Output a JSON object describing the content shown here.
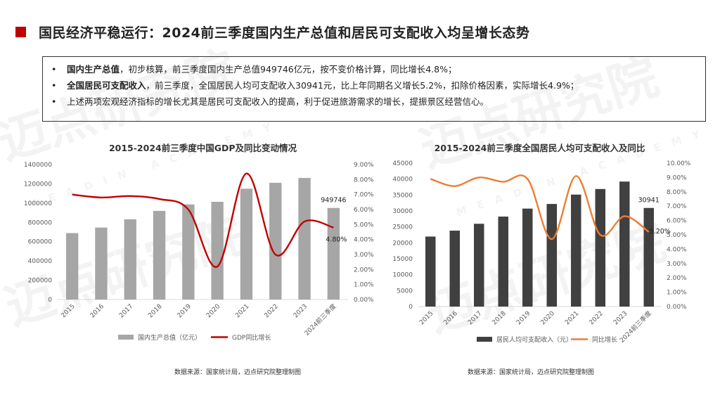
{
  "title": "国民经济平稳运行：2024前三季度国内生产总值和居民可支配收入均呈增长态势",
  "bullets": [
    {
      "strong": "国内生产总值",
      "rest": "，初步核算，前三季度国内生产总值949746亿元，按不变价格计算，同比增长4.8%；"
    },
    {
      "strong": "全国居民可支配收入",
      "rest": "，前三季度，全国居民人均可支配收入30941元，比上年同期名义增长5.2%，扣除价格因素，实际增长4.9%；"
    },
    {
      "strong": "",
      "rest": "上述两项宏观经济指标的增长尤其是居民可支配收入的提高，利于促进旅游需求的增长，提振景区经营信心。"
    }
  ],
  "bullet_symbol": "•",
  "watermark": {
    "cn": "迈点研究院",
    "en": "MEADIN ACADEMY"
  },
  "colors": {
    "accent": "#c00000",
    "bar_gray": "#a6a6a6",
    "bar_dark": "#404040",
    "line_red": "#c00000",
    "line_orange": "#ed7d31"
  },
  "chart_data": [
    {
      "type": "bar",
      "title": "2015-2024前三季度中国GDP及同比变动情况",
      "categories": [
        "2015",
        "2016",
        "2017",
        "2018",
        "2019",
        "2020",
        "2021",
        "2022",
        "2023",
        "2024前三季度"
      ],
      "series": [
        {
          "name": "国内生产总值（亿元）",
          "type": "bar",
          "axis": "left",
          "values": [
            688858,
            746395,
            832036,
            919281,
            986515,
            1013567,
            1149237,
            1210207,
            1260582,
            949746
          ]
        },
        {
          "name": "GDP同比增长",
          "type": "line",
          "axis": "right",
          "values": [
            7.0,
            6.8,
            6.9,
            6.7,
            6.0,
            2.2,
            8.4,
            3.0,
            5.2,
            4.8
          ]
        }
      ],
      "y_left": {
        "min": 0,
        "max": 1400000,
        "ticks": [
          "0",
          "200000",
          "400000",
          "600000",
          "800000",
          "1000000",
          "1200000",
          "1400000"
        ]
      },
      "y_right": {
        "min": 0,
        "max": 9,
        "ticks": [
          "0.00%",
          "1.00%",
          "2.00%",
          "3.00%",
          "4.00%",
          "5.00%",
          "6.00%",
          "7.00%",
          "8.00%",
          "9.00%"
        ]
      },
      "labels": {
        "bar_last": "949746",
        "line_last": "4.80%"
      },
      "legend": "bottom",
      "source": "数据来源：国家统计局，迈点研究院整理制图"
    },
    {
      "type": "bar",
      "title": "2015-2024前三季度全国居民人均可支配收入及同比",
      "categories": [
        "2015",
        "2016",
        "2017",
        "2018",
        "2019",
        "2020",
        "2021",
        "2022",
        "2023",
        "2024前三季度"
      ],
      "series": [
        {
          "name": "居民人均可支配收入（元）",
          "type": "bar",
          "axis": "left",
          "values": [
            21966,
            23821,
            25974,
            28228,
            30733,
            32189,
            35128,
            36883,
            39218,
            30941
          ]
        },
        {
          "name": "同比增长",
          "type": "line",
          "axis": "right",
          "values": [
            8.9,
            8.4,
            9.0,
            8.7,
            8.9,
            4.7,
            9.1,
            5.0,
            6.3,
            5.2
          ]
        }
      ],
      "y_left": {
        "min": 0,
        "max": 45000,
        "ticks": [
          "0",
          "5000",
          "10000",
          "15000",
          "20000",
          "25000",
          "30000",
          "35000",
          "40000",
          "45000"
        ]
      },
      "y_right": {
        "min": 0,
        "max": 10,
        "ticks": [
          "0.00%",
          "1.00%",
          "2.00%",
          "3.00%",
          "4.00%",
          "5.00%",
          "6.00%",
          "7.00%",
          "8.00%",
          "9.00%",
          "10.00%"
        ]
      },
      "labels": {
        "bar_last": "30941",
        "line_last": "5.20%"
      },
      "legend": "bottom",
      "source": "数据来源：国家统计局，迈点研究院整理制图"
    }
  ]
}
